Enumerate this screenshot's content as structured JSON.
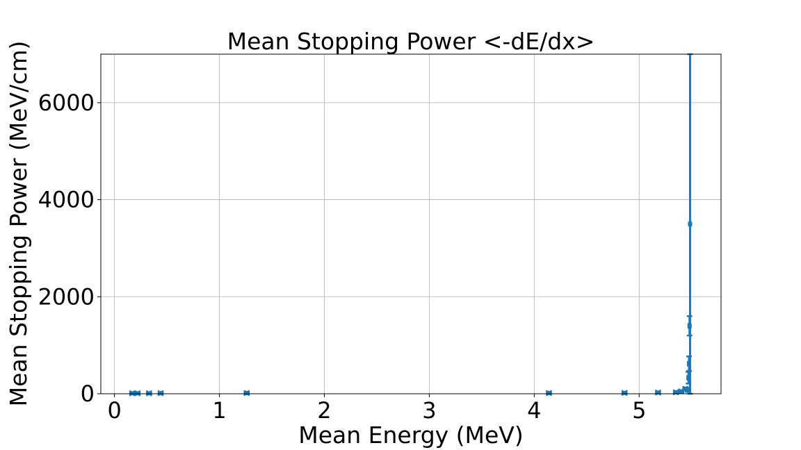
{
  "chart_data": {
    "type": "errorbar",
    "title": "Mean Stopping Power <-dE/dx>",
    "xlabel": "Mean Energy (MeV)",
    "ylabel": "Mean Stopping Power (MeV/cm)",
    "xlim": [
      -0.13,
      5.78
    ],
    "ylim": [
      0,
      7000
    ],
    "xticks": [
      0,
      1,
      2,
      3,
      4,
      5
    ],
    "yticks": [
      0,
      2000,
      4000,
      6000
    ],
    "grid": true,
    "legend": "none",
    "series_color": "#1f77b4",
    "points": [
      {
        "x": 0.17,
        "y": 10,
        "xerr": 0.02,
        "yerr": 8
      },
      {
        "x": 0.22,
        "y": 10,
        "xerr": 0.02,
        "yerr": 8
      },
      {
        "x": 0.33,
        "y": 10,
        "xerr": 0.02,
        "yerr": 8
      },
      {
        "x": 0.44,
        "y": 12,
        "xerr": 0.02,
        "yerr": 8
      },
      {
        "x": 1.26,
        "y": 15,
        "xerr": 0.02,
        "yerr": 10
      },
      {
        "x": 4.14,
        "y": 15,
        "xerr": 0.02,
        "yerr": 10
      },
      {
        "x": 4.86,
        "y": 18,
        "xerr": 0.02,
        "yerr": 10
      },
      {
        "x": 5.18,
        "y": 25,
        "xerr": 0.02,
        "yerr": 12
      },
      {
        "x": 5.35,
        "y": 30,
        "xerr": 0.02,
        "yerr": 15
      },
      {
        "x": 5.4,
        "y": 50,
        "xerr": 0.02,
        "yerr": 20
      },
      {
        "x": 5.44,
        "y": 100,
        "xerr": 0.02,
        "yerr": 30
      },
      {
        "x": 5.46,
        "y": 80,
        "xerr": 0.01,
        "yerr": 40
      },
      {
        "x": 5.47,
        "y": 330,
        "xerr": 0.01,
        "yerr": 120
      },
      {
        "x": 5.475,
        "y": 620,
        "xerr": 0.01,
        "yerr": 150
      },
      {
        "x": 5.48,
        "y": 1400,
        "xerr": 0.01,
        "yerr": 200
      },
      {
        "x": 5.485,
        "y": 3500,
        "xerr": 0.005,
        "yerr": 3500
      }
    ]
  }
}
